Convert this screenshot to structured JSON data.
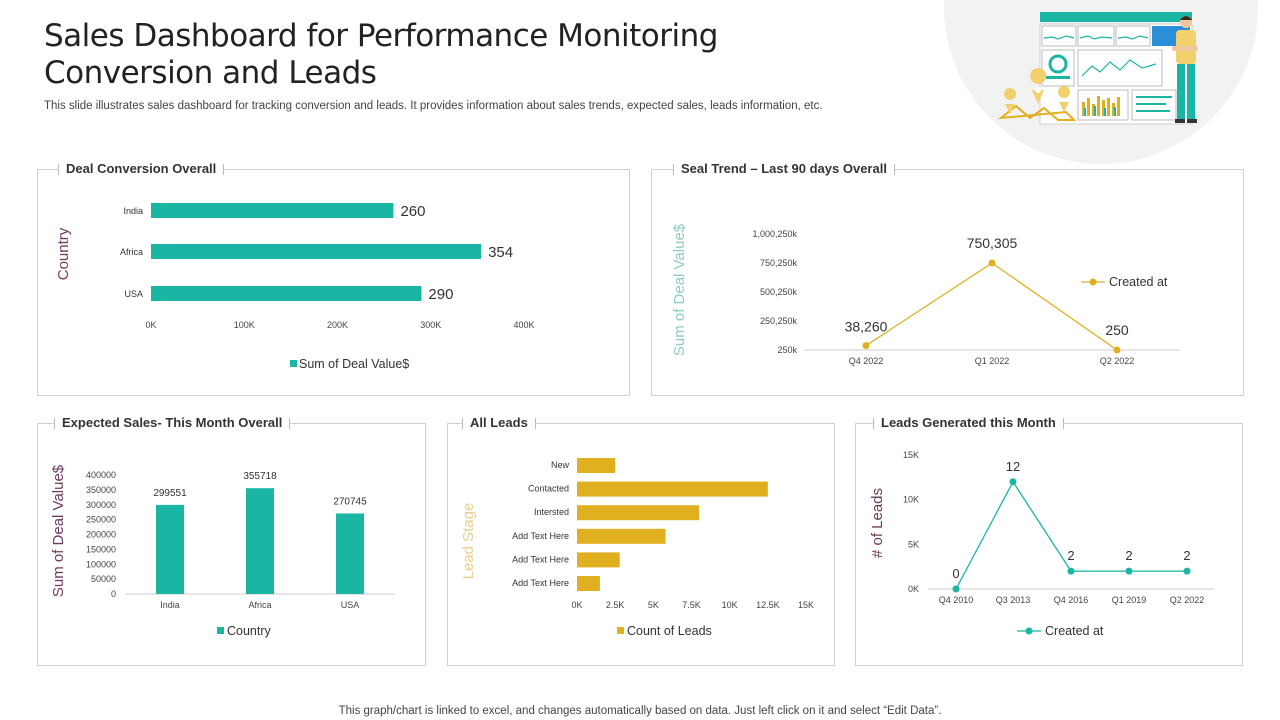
{
  "header": {
    "title_line1": "Sales Dashboard for Performance Monitoring",
    "title_line2": "Conversion and Leads",
    "subtitle": "This slide illustrates sales dashboard for tracking conversion and leads. It provides information about sales trends, expected sales, leads information, etc."
  },
  "footer": {
    "note": "This graph/chart is linked to excel,  and changes automatically based on data. Just left click on it and select “Edit Data”."
  },
  "colors": {
    "teal": "#1ab5a3",
    "gold": "#e0b020",
    "axis_label_purple": "#6e3a5c",
    "axis_label_teal": "#8ecbc4",
    "axis_label_gold": "#e8cf90"
  },
  "chart_data": [
    {
      "id": "deal-conversion",
      "type": "bar",
      "orientation": "horizontal",
      "title": "Deal Conversion Overall",
      "ylabel": "Country",
      "categories": [
        "India",
        "Africa",
        "USA"
      ],
      "values": [
        260,
        354,
        290
      ],
      "data_labels": [
        "260",
        "354",
        "290"
      ],
      "xticks": [
        "0K",
        "100K",
        "200K",
        "300K",
        "400K"
      ],
      "xlim": [
        0,
        400
      ],
      "legend": "Sum of Deal Value$",
      "legend_position": "bottom",
      "color": "#1ab5a3"
    },
    {
      "id": "seal-trend",
      "type": "line",
      "title": "Seal Trend – Last 90 days Overall",
      "ylabel": "Sum of Deal Value$",
      "categories": [
        "Q4 2022",
        "Q1 2022",
        "Q2 2022"
      ],
      "values": [
        38260,
        750305,
        250
      ],
      "data_labels": [
        "38,260",
        "750,305",
        "250"
      ],
      "yticks": [
        "1,000,250k",
        "750,250k",
        "500,250k",
        "250,250k",
        "250k"
      ],
      "legend": "Created at",
      "legend_position": "right",
      "color": "#e0b020"
    },
    {
      "id": "expected-sales",
      "type": "bar",
      "orientation": "vertical",
      "title": "Expected Sales- This Month Overall",
      "ylabel": "Sum of Deal Value$",
      "categories": [
        "India",
        "Africa",
        "USA"
      ],
      "values": [
        299551,
        355718,
        270745
      ],
      "data_labels": [
        "299551",
        "355718",
        "270745"
      ],
      "yticks": [
        "400000",
        "350000",
        "300000",
        "250000",
        "200000",
        "150000",
        "100000",
        "50000",
        "0"
      ],
      "ylim": [
        0,
        400000
      ],
      "legend": "Country",
      "legend_position": "bottom",
      "color": "#1ab5a3"
    },
    {
      "id": "all-leads",
      "type": "bar",
      "orientation": "horizontal",
      "title": "All Leads",
      "ylabel": "Lead Stage",
      "categories": [
        "New",
        "Contacted",
        "Intersted",
        "Add Text Here",
        "Add Text Here",
        "Add Text Here"
      ],
      "values": [
        2500,
        12500,
        8000,
        5800,
        2800,
        1500
      ],
      "xticks": [
        "0K",
        "2.5K",
        "5K",
        "7.5K",
        "10K",
        "12.5K",
        "15K"
      ],
      "xlim": [
        0,
        15000
      ],
      "legend": "Count of Leads",
      "legend_position": "bottom",
      "color": "#e0b020"
    },
    {
      "id": "leads-generated",
      "type": "line",
      "title": "Leads Generated this Month",
      "ylabel": "# of Leads",
      "categories": [
        "Q4 2010",
        "Q3 2013",
        "Q4 2016",
        "Q1 2019",
        "Q2 2022"
      ],
      "values": [
        0,
        12,
        2,
        2,
        2
      ],
      "data_labels": [
        "0",
        "12",
        "2",
        "2",
        "2"
      ],
      "yticks": [
        "15K",
        "10K",
        "5K",
        "0K"
      ],
      "ylim": [
        0,
        15
      ],
      "legend": "Created at",
      "legend_position": "bottom",
      "color": "#1ab5a3"
    }
  ]
}
